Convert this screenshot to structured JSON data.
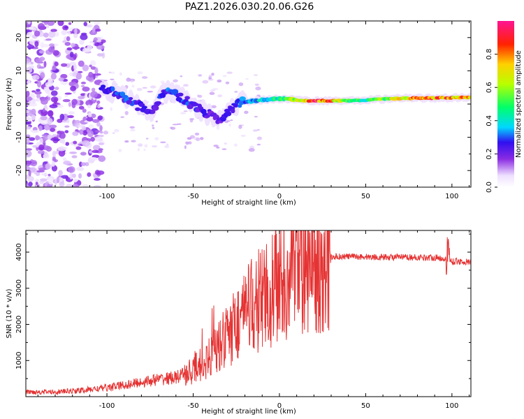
{
  "title": "PAZ1.2026.030.20.06.G26",
  "chart_data": [
    {
      "type": "heatmap",
      "xlabel": "Height of straight line (km)",
      "ylabel": "Frequency (Hz)",
      "xlim": [
        -147,
        111
      ],
      "ylim": [
        -25,
        25
      ],
      "xticks": [
        -100,
        -50,
        0,
        50,
        100
      ],
      "xtick_labels": [
        "-100",
        "-50",
        "0",
        "50",
        "100"
      ],
      "yticks": [
        -20,
        -10,
        0,
        10,
        20
      ],
      "ytick_labels": [
        "-20",
        "-10",
        "0",
        "10",
        "20"
      ],
      "colorbar": {
        "label": "Normalized spectral amplitude",
        "range": [
          0,
          1
        ],
        "ticks": [
          0.0,
          0.2,
          0.4,
          0.6,
          0.8
        ],
        "tick_labels": [
          "0.0",
          "0.2",
          "0.4",
          "0.6",
          "0.8"
        ]
      },
      "ridge": [
        {
          "x": -103,
          "y": 4.5,
          "amp": 0.25
        },
        {
          "x": -95,
          "y": 3.5,
          "amp": 0.3
        },
        {
          "x": -85,
          "y": 0.5,
          "amp": 0.3
        },
        {
          "x": -75,
          "y": -2.5,
          "amp": 0.25
        },
        {
          "x": -65,
          "y": 4.0,
          "amp": 0.3
        },
        {
          "x": -55,
          "y": 1.5,
          "amp": 0.3
        },
        {
          "x": -45,
          "y": -2.0,
          "amp": 0.25
        },
        {
          "x": -35,
          "y": -4.5,
          "amp": 0.25
        },
        {
          "x": -25,
          "y": 0.0,
          "amp": 0.3
        },
        {
          "x": -15,
          "y": 1.0,
          "amp": 0.4
        },
        {
          "x": -5,
          "y": 1.5,
          "amp": 0.45
        },
        {
          "x": 5,
          "y": 1.5,
          "amp": 0.55
        },
        {
          "x": 15,
          "y": 1.0,
          "amp": 0.8
        },
        {
          "x": 20,
          "y": 1.0,
          "amp": 0.95
        },
        {
          "x": 30,
          "y": 1.0,
          "amp": 0.85
        },
        {
          "x": 40,
          "y": 1.0,
          "amp": 0.55
        },
        {
          "x": 50,
          "y": 1.2,
          "amp": 0.5
        },
        {
          "x": 60,
          "y": 1.5,
          "amp": 0.6
        },
        {
          "x": 70,
          "y": 1.7,
          "amp": 0.75
        },
        {
          "x": 80,
          "y": 1.8,
          "amp": 0.85
        },
        {
          "x": 90,
          "y": 1.8,
          "amp": 0.9
        },
        {
          "x": 100,
          "y": 1.9,
          "amp": 0.85
        },
        {
          "x": 111,
          "y": 2.0,
          "amp": 0.8
        }
      ]
    },
    {
      "type": "line",
      "xlabel": "Height of straight line (km)",
      "ylabel": "SNR (10 * v/v)",
      "xlim": [
        -147,
        111
      ],
      "ylim": [
        0,
        4600
      ],
      "xticks": [
        -100,
        -50,
        0,
        50,
        100
      ],
      "xtick_labels": [
        "-100",
        "-50",
        "0",
        "50",
        "100"
      ],
      "yticks": [
        1000,
        2000,
        3000,
        4000
      ],
      "ytick_labels": [
        "1000",
        "2000",
        "3000",
        "4000"
      ],
      "color": "#e53333",
      "series": [
        {
          "name": "SNR",
          "x": [
            -147,
            -130,
            -115,
            -100,
            -90,
            -80,
            -70,
            -60,
            -55,
            -50,
            -45,
            -40,
            -35,
            -30,
            -25,
            -20,
            -15,
            -10,
            -5,
            0,
            5,
            10,
            15,
            20,
            25,
            30,
            35,
            40,
            50,
            60,
            70,
            80,
            90,
            96,
            98,
            100,
            111
          ],
          "y": [
            130,
            130,
            170,
            250,
            320,
            400,
            480,
            530,
            600,
            750,
            900,
            1100,
            1400,
            1700,
            2000,
            2300,
            2550,
            2750,
            2900,
            3000,
            3200,
            3400,
            3600,
            3750,
            3820,
            3870,
            3880,
            3880,
            3870,
            3860,
            3860,
            3850,
            3850,
            3820,
            3800,
            3750,
            3720
          ]
        }
      ]
    }
  ]
}
